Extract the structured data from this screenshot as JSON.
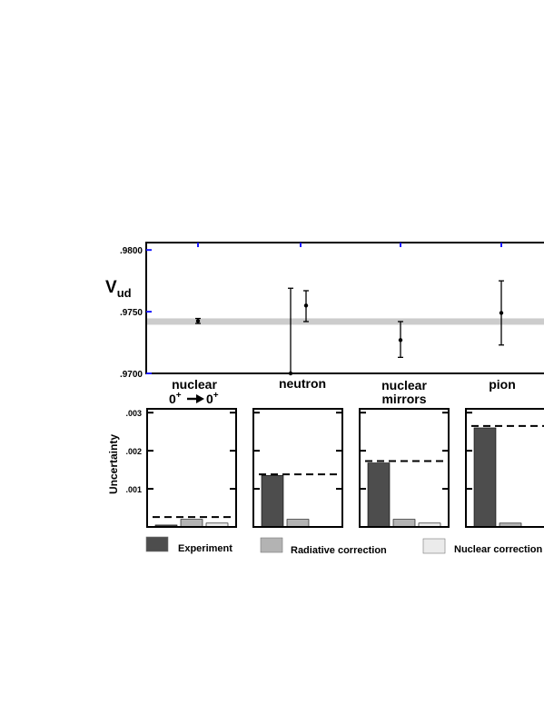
{
  "chart_data": [
    {
      "type": "scatter",
      "ylabel": "V",
      "ylabel_sub": "ud",
      "y_ticks": [
        ".9700",
        ".9750",
        ".9800"
      ],
      "ylim": [
        0.97,
        0.9806
      ],
      "reference_value": 0.9742,
      "reference_color": "#cccccc",
      "categories": [
        "nuclear",
        "neutron",
        "nuclear mirrors",
        "pion"
      ],
      "category_labels": {
        "nuclear": "nuclear",
        "neutron": "neutron",
        "mirrors_line1": "nuclear",
        "mirrors_line2": "mirrors",
        "pion": "pion",
        "transition_from": "0",
        "transition_from_sup": "+",
        "transition_to": "0",
        "transition_to_sup": "+"
      },
      "points": [
        {
          "category": "nuclear",
          "y": 0.97425,
          "yerr_low": 0.97405,
          "yerr_high": 0.97445
        },
        {
          "category": "neutron",
          "y": 0.97,
          "yerr_low": 0.97,
          "yerr_high": 0.9769
        },
        {
          "category": "neutron",
          "y": 0.9755,
          "yerr_low": 0.9742,
          "yerr_high": 0.9767
        },
        {
          "category": "nuclear mirrors",
          "y": 0.9727,
          "yerr_low": 0.9713,
          "yerr_high": 0.9742
        },
        {
          "category": "pion",
          "y": 0.9749,
          "yerr_low": 0.9723,
          "yerr_high": 0.9775
        }
      ]
    },
    {
      "type": "bar",
      "ylabel": "Uncertainty",
      "y_ticks": [
        ".001",
        ".002",
        ".003"
      ],
      "ylim": [
        0,
        0.0031
      ],
      "legend": [
        {
          "name": "Experiment",
          "color": "#4d4d4d"
        },
        {
          "name": "Radiative correction",
          "color": "#b3b3b3"
        },
        {
          "name": "Nuclear correction",
          "color": "#ebebeb"
        }
      ],
      "panels": [
        {
          "category": "nuclear",
          "experiment": 5e-05,
          "radiative": 0.0002,
          "nuclear": 0.0001,
          "total": 0.00026
        },
        {
          "category": "neutron",
          "experiment": 0.00135,
          "radiative": 0.0002,
          "nuclear": null,
          "total": 0.00138
        },
        {
          "category": "nuclear mirrors",
          "experiment": 0.00168,
          "radiative": 0.0002,
          "nuclear": 0.0001,
          "total": 0.00173
        },
        {
          "category": "pion",
          "experiment": 0.0026,
          "radiative": 0.0001,
          "nuclear": null,
          "total": 0.00265
        }
      ]
    }
  ]
}
